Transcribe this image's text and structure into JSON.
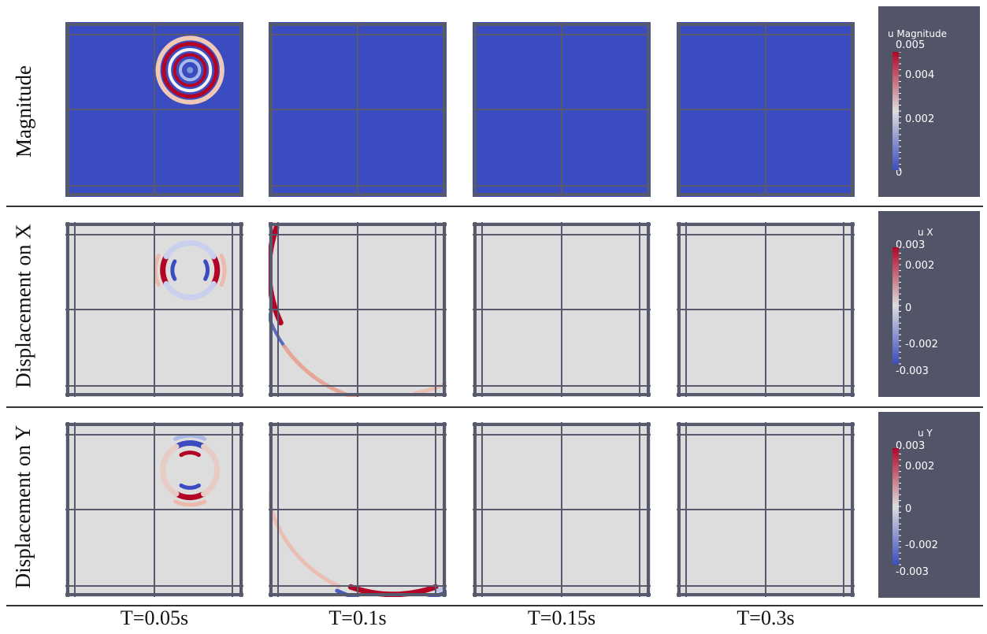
{
  "colors": {
    "blue": "#3b4cc0",
    "red": "#b40426",
    "neutral": "#dddddd",
    "grid": "#575a6d",
    "legend_bg": "#525568"
  },
  "rows": [
    {
      "label": "Magnitude",
      "field": "magnitude"
    },
    {
      "label": "Displacement on X",
      "field": "x"
    },
    {
      "label": "Displacement on Y",
      "field": "y"
    }
  ],
  "columns": [
    {
      "label": "T=0.05s",
      "radius_fraction": 0.18
    },
    {
      "label": "T=0.1s",
      "radius_fraction": 0.72
    },
    {
      "label": "T=0.15s",
      "radius_fraction": 1.04
    },
    {
      "label": "T=0.3s",
      "radius_fraction": 0
    }
  ],
  "legends": [
    {
      "title": "u Magnitude",
      "ticks": [
        "0.005",
        "0.004",
        "0.002",
        "0"
      ]
    },
    {
      "title": "u X",
      "ticks": [
        "0.003",
        "0.002",
        "0",
        "-0.002",
        "-0.003"
      ]
    },
    {
      "title": "u Y",
      "ticks": [
        "0.003",
        "0.002",
        "0",
        "-0.002",
        "-0.003"
      ]
    }
  ]
}
